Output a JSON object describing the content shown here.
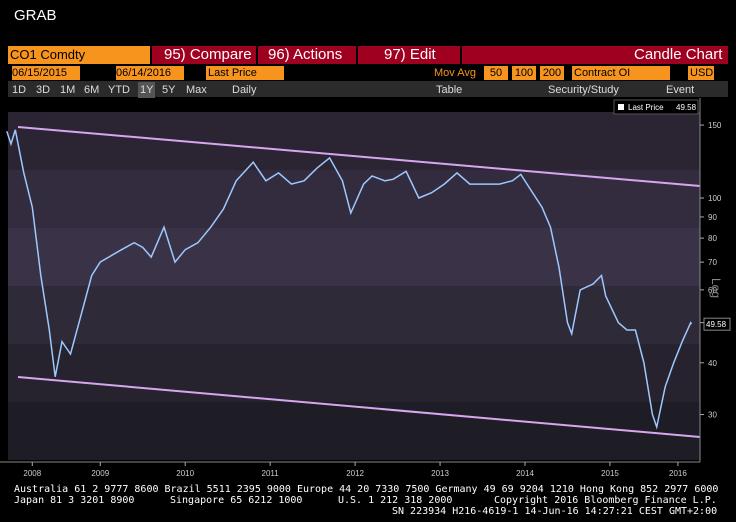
{
  "app": {
    "title": "GRAB"
  },
  "toolbar1": {
    "ticker": "CO1 Comdty",
    "compare": "95) Compare",
    "actions": "96) Actions",
    "edit": "97) Edit",
    "chart_type": "Candle Chart"
  },
  "toolbar2": {
    "start_date": "06/15/2015",
    "end_date": "06/14/2016",
    "field": "Last Price",
    "mov_avg_label": "Mov Avg",
    "mov_avg": [
      "50",
      "100",
      "200"
    ],
    "secondary": "Contract OI",
    "currency": "USD"
  },
  "toolbar3": {
    "ranges": [
      "1D",
      "3D",
      "1M",
      "6M",
      "YTD",
      "1Y",
      "5Y",
      "Max"
    ],
    "period": "Daily",
    "table": "Table",
    "study": "Security/Study",
    "event": "Event"
  },
  "chart_data": {
    "type": "line",
    "y_label": "Log",
    "log_scale": true,
    "x": [
      2008.4,
      2008.45,
      2008.5,
      2008.6,
      2008.7,
      2008.8,
      2008.9,
      2008.97,
      2009.05,
      2009.15,
      2009.25,
      2009.4,
      2009.5,
      2009.6,
      2009.75,
      2009.9,
      2010.0,
      2010.1,
      2010.25,
      2010.38,
      2010.5,
      2010.65,
      2010.8,
      2010.95,
      2011.1,
      2011.3,
      2011.45,
      2011.6,
      2011.75,
      2011.9,
      2012.05,
      2012.2,
      2012.35,
      2012.45,
      2012.6,
      2012.7,
      2012.85,
      2012.95,
      2013.1,
      2013.25,
      2013.4,
      2013.55,
      2013.7,
      2013.85,
      2014.0,
      2014.2,
      2014.35,
      2014.45,
      2014.55,
      2014.7,
      2014.8,
      2014.9,
      2015.0,
      2015.05,
      2015.15,
      2015.3,
      2015.4,
      2015.45,
      2015.6,
      2015.7,
      2015.8,
      2015.9,
      2016.0,
      2016.05,
      2016.15,
      2016.25,
      2016.35,
      2016.45,
      2016.46
    ],
    "series": [
      {
        "name": "Last Price",
        "color": "#9ec8ff",
        "values": [
          145,
          135,
          146,
          115,
          95,
          65,
          48,
          37,
          45,
          42,
          50,
          65,
          70,
          72,
          75,
          78,
          76,
          72,
          85,
          70,
          75,
          78,
          85,
          94,
          110,
          122,
          110,
          115,
          108,
          110,
          118,
          125,
          110,
          92,
          108,
          113,
          110,
          111,
          116,
          100,
          103,
          108,
          115,
          108,
          108,
          108,
          110,
          114,
          106,
          95,
          85,
          68,
          50,
          47,
          60,
          62,
          65,
          58,
          50,
          48,
          48,
          40,
          30,
          28,
          35,
          40,
          45,
          50,
          49.58
        ]
      }
    ],
    "xlim": [
      2008.32,
      2016.56
    ],
    "xticks": [
      {
        "value": 2008.7,
        "label": "2008"
      },
      {
        "value": 2009.5,
        "label": "2009"
      },
      {
        "value": 2010.5,
        "label": "2010"
      },
      {
        "value": 2011.5,
        "label": "2011"
      },
      {
        "value": 2012.5,
        "label": "2012"
      },
      {
        "value": 2013.5,
        "label": "2013"
      },
      {
        "value": 2014.5,
        "label": "2014"
      },
      {
        "value": 2015.5,
        "label": "2015"
      },
      {
        "value": 2016.3,
        "label": "2016"
      }
    ],
    "ylim": [
      23.3,
      161.3
    ],
    "yticks": [
      30,
      40,
      50,
      60,
      70,
      80,
      90,
      100,
      150
    ]
  },
  "footer": {
    "line1": "Australia 61 2 9777 8600 Brazil 5511 2395 9000 Europe 44 20 7330 7500 Germany 49 69 9204 1210 Hong Kong 852 2977 6000",
    "line2": [
      "Japan 81 3 3201 8900",
      "Singapore 65 6212 1000",
      "U.S. 1 212 318 2000",
      "Copyright 2016 Bloomberg Finance L.P."
    ],
    "line3": "SN 223934 H216-4619-1 14-Jun-16 14:27:21 CEST GMT+2:00"
  }
}
